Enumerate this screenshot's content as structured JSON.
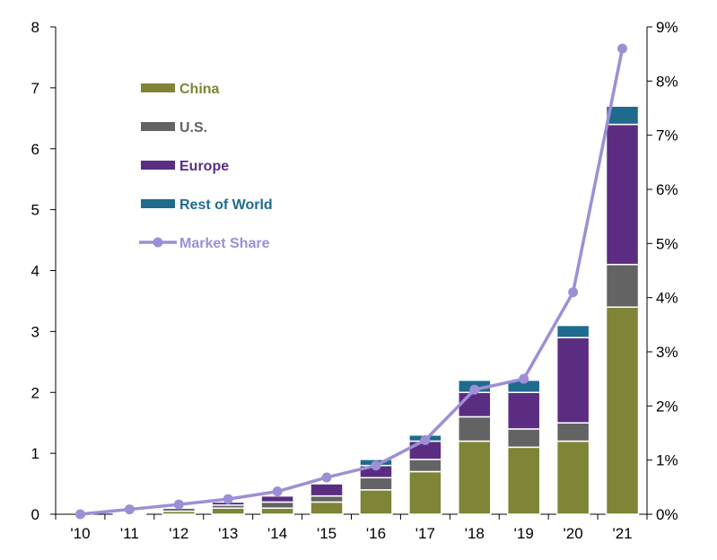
{
  "chart_data": {
    "type": "bar",
    "stacked": true,
    "categories": [
      "'10",
      "'11",
      "'12",
      "'13",
      "'14",
      "'15",
      "'16",
      "'17",
      "'18",
      "'19",
      "'20",
      "'21"
    ],
    "series": [
      {
        "name": "China",
        "color": "#7f8436",
        "values": [
          0.0,
          0.02,
          0.05,
          0.1,
          0.1,
          0.2,
          0.4,
          0.7,
          1.2,
          1.1,
          1.2,
          3.4
        ]
      },
      {
        "name": "U.S.",
        "color": "#636363",
        "values": [
          0.0,
          0.02,
          0.05,
          0.05,
          0.1,
          0.1,
          0.2,
          0.2,
          0.4,
          0.3,
          0.3,
          0.7
        ]
      },
      {
        "name": "Europe",
        "color": "#5a2d82",
        "values": [
          0.0,
          0.01,
          0.0,
          0.05,
          0.1,
          0.2,
          0.2,
          0.3,
          0.4,
          0.6,
          1.4,
          2.3
        ]
      },
      {
        "name": "Rest of World",
        "color": "#1f6b8e",
        "values": [
          0.0,
          0.0,
          0.0,
          0.0,
          0.0,
          0.0,
          0.1,
          0.1,
          0.2,
          0.2,
          0.2,
          0.3
        ]
      }
    ],
    "line_series": {
      "name": "Market Share",
      "color": "#9d8fd6",
      "values": [
        0.0,
        0.09,
        0.18,
        0.28,
        0.42,
        0.68,
        0.9,
        1.37,
        2.3,
        2.5,
        4.1,
        8.6
      ]
    },
    "ylim": [
      0,
      8
    ],
    "y_ticks": [
      "0",
      "1",
      "2",
      "3",
      "4",
      "5",
      "6",
      "7",
      "8"
    ],
    "y2lim": [
      0,
      9
    ],
    "y2_ticks": [
      "0%",
      "1%",
      "2%",
      "3%",
      "4%",
      "5%",
      "6%",
      "7%",
      "8%",
      "9%"
    ],
    "title": "",
    "xlabel": "",
    "ylabel": "",
    "y2label": "",
    "legend_position": "top-left",
    "grid": false
  }
}
